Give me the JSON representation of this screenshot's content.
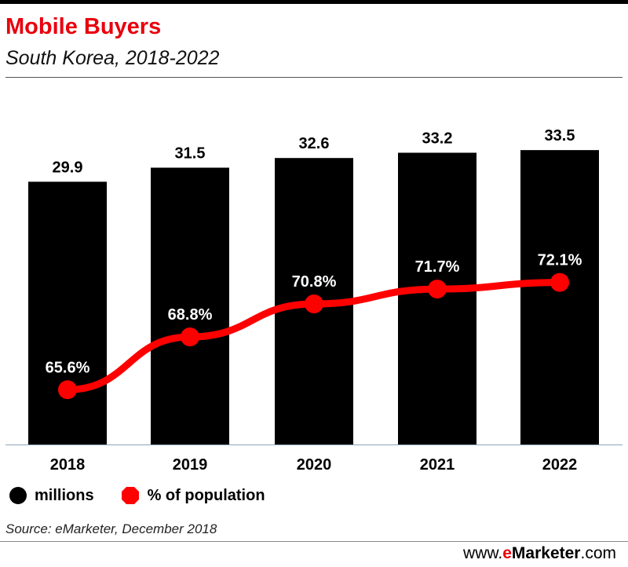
{
  "header": {
    "title": "Mobile Buyers",
    "subtitle": "South Korea, 2018-2022"
  },
  "colors": {
    "accent": "#e8000d",
    "bar": "#000000",
    "line": "#ff0000"
  },
  "chart_data": {
    "type": "bar",
    "categories": [
      "2018",
      "2019",
      "2020",
      "2021",
      "2022"
    ],
    "series": [
      {
        "name": "millions",
        "type": "bar",
        "values": [
          29.9,
          31.5,
          32.6,
          33.2,
          33.5
        ],
        "labels": [
          "29.9",
          "31.5",
          "32.6",
          "33.2",
          "33.5"
        ]
      },
      {
        "name": "% of population",
        "type": "line",
        "values": [
          65.6,
          68.8,
          70.8,
          71.7,
          72.1
        ],
        "labels": [
          "65.6%",
          "68.8%",
          "70.8%",
          "71.7%",
          "72.1%"
        ]
      }
    ],
    "ylim": [
      0,
      35
    ],
    "line_ylim": [
      0,
      100
    ],
    "grid": false,
    "legend_position": "bottom-left"
  },
  "legend": {
    "bar_label": "millions",
    "line_label": "% of population"
  },
  "footer": {
    "source": "Source: eMarketer, December 2018",
    "brand_prefix": "www.",
    "brand_e": "e",
    "brand_name": "Marketer",
    "brand_suffix": ".com"
  }
}
